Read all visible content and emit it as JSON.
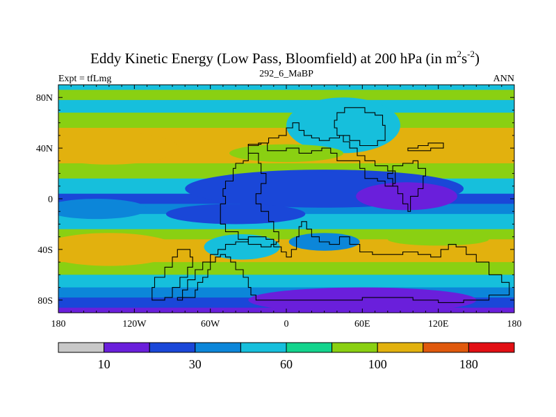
{
  "chart_data": {
    "type": "heatmap",
    "title": {
      "main": "Eddy Kinetic Energy (Low Pass, Bloomfield) at 200 hPa (in m",
      "sup1": "2",
      "mid": "s",
      "sup2": "-2",
      "close": ")"
    },
    "left_label": "Expt = tfLmg",
    "center_label": "292_6_MaBP",
    "right_label": "ANN",
    "xlim": [
      -180,
      180
    ],
    "ylim": [
      -90,
      90
    ],
    "x_ticks": [
      {
        "value": -180,
        "label": "180"
      },
      {
        "value": -120,
        "label": "120W"
      },
      {
        "value": -60,
        "label": "60W"
      },
      {
        "value": 0,
        "label": "0"
      },
      {
        "value": 60,
        "label": "60E"
      },
      {
        "value": 120,
        "label": "120E"
      },
      {
        "value": 180,
        "label": "180"
      }
    ],
    "y_ticks": [
      {
        "value": 80,
        "label": "80N"
      },
      {
        "value": 40,
        "label": "40N"
      },
      {
        "value": 0,
        "label": "0"
      },
      {
        "value": -40,
        "label": "40S"
      },
      {
        "value": -80,
        "label": "80S"
      }
    ],
    "colorbar": {
      "levels": [
        0,
        10,
        20,
        30,
        45,
        60,
        80,
        100,
        130,
        180,
        240
      ],
      "colors": [
        "#c8c8c8",
        "#6a1fdb",
        "#1a47d8",
        "#0c86d9",
        "#16bfdc",
        "#13d48d",
        "#8ad012",
        "#e2b10e",
        "#e0590d",
        "#e20f14"
      ],
      "labels": [
        {
          "value": 10,
          "label": "10"
        },
        {
          "value": 30,
          "label": "30"
        },
        {
          "value": 60,
          "label": "60"
        },
        {
          "value": 100,
          "label": "100"
        },
        {
          "value": 180,
          "label": "180"
        }
      ]
    },
    "zonal_bands": [
      {
        "lat_top": 90,
        "lat_bottom": 86,
        "value": 55
      },
      {
        "lat_top": 86,
        "lat_bottom": 78,
        "value": 85
      },
      {
        "lat_top": 78,
        "lat_bottom": 68,
        "value": 55
      },
      {
        "lat_top": 68,
        "lat_bottom": 56,
        "value": 85
      },
      {
        "lat_top": 56,
        "lat_bottom": 28,
        "value": 110
      },
      {
        "lat_top": 28,
        "lat_bottom": 16,
        "value": 85
      },
      {
        "lat_top": 16,
        "lat_bottom": 4,
        "value": 55
      },
      {
        "lat_top": 4,
        "lat_bottom": -4,
        "value": 25
      },
      {
        "lat_top": -4,
        "lat_bottom": -12,
        "value": 40
      },
      {
        "lat_top": -12,
        "lat_bottom": -24,
        "value": 55
      },
      {
        "lat_top": -24,
        "lat_bottom": -32,
        "value": 85
      },
      {
        "lat_top": -32,
        "lat_bottom": -50,
        "value": 110
      },
      {
        "lat_top": -50,
        "lat_bottom": -60,
        "value": 85
      },
      {
        "lat_top": -60,
        "lat_bottom": -70,
        "value": 55
      },
      {
        "lat_top": -70,
        "lat_bottom": -78,
        "value": 40
      },
      {
        "lat_top": -78,
        "lat_bottom": -86,
        "value": 25
      },
      {
        "lat_top": -86,
        "lat_bottom": -90,
        "value": 15
      }
    ],
    "regional_features": [
      {
        "shape": "ellipse",
        "lon": -140,
        "lat": 40,
        "rlon": 55,
        "rlat": 13,
        "value": 110
      },
      {
        "shape": "ellipse",
        "lon": 45,
        "lat": 58,
        "rlon": 45,
        "rlat": 22,
        "value": 55
      },
      {
        "shape": "ellipse",
        "lon": 150,
        "lat": 38,
        "rlon": 35,
        "rlat": 10,
        "value": 110
      },
      {
        "shape": "ellipse",
        "lon": 0,
        "lat": 36,
        "rlon": 45,
        "rlat": 7,
        "value": 85
      },
      {
        "shape": "ellipse",
        "lon": 30,
        "lat": 8,
        "rlon": 110,
        "rlat": 15,
        "value": 25
      },
      {
        "shape": "ellipse",
        "lon": 95,
        "lat": 2,
        "rlon": 40,
        "rlat": 11,
        "value": 15
      },
      {
        "shape": "ellipse",
        "lon": -40,
        "lat": -12,
        "rlon": 55,
        "rlat": 8,
        "value": 25
      },
      {
        "shape": "ellipse",
        "lon": -150,
        "lat": -8,
        "rlon": 40,
        "rlat": 8,
        "value": 40
      },
      {
        "shape": "ellipse",
        "lon": -35,
        "lat": -38,
        "rlon": 30,
        "rlat": 10,
        "value": 55
      },
      {
        "shape": "ellipse",
        "lon": 30,
        "lat": -34,
        "rlon": 28,
        "rlat": 7,
        "value": 40
      },
      {
        "shape": "ellipse",
        "lon": 120,
        "lat": -32,
        "rlon": 40,
        "rlat": 5,
        "value": 85
      },
      {
        "shape": "ellipse",
        "lon": -140,
        "lat": -40,
        "rlon": 55,
        "rlat": 13,
        "value": 110
      },
      {
        "shape": "ellipse",
        "lon": 60,
        "lat": -80,
        "rlon": 90,
        "rlat": 10,
        "value": 15
      }
    ],
    "continent_outlines": [
      [
        [
          -30,
          43
        ],
        [
          -20,
          44
        ],
        [
          -15,
          38
        ],
        [
          -5,
          38
        ],
        [
          0,
          40
        ],
        [
          10,
          36
        ],
        [
          20,
          38
        ],
        [
          28,
          40
        ],
        [
          35,
          36
        ],
        [
          40,
          30
        ],
        [
          50,
          30
        ],
        [
          58,
          24
        ],
        [
          62,
          16
        ],
        [
          72,
          14
        ],
        [
          78,
          10
        ],
        [
          84,
          12
        ],
        [
          86,
          22
        ],
        [
          80,
          26
        ],
        [
          70,
          30
        ],
        [
          62,
          34
        ],
        [
          56,
          40
        ],
        [
          50,
          45
        ],
        [
          45,
          50
        ],
        [
          40,
          56
        ],
        [
          38,
          62
        ],
        [
          40,
          68
        ],
        [
          46,
          72
        ],
        [
          55,
          72
        ],
        [
          62,
          68
        ],
        [
          70,
          66
        ],
        [
          76,
          58
        ],
        [
          78,
          46
        ],
        [
          72,
          42
        ],
        [
          64,
          42
        ],
        [
          58,
          46
        ],
        [
          50,
          50
        ],
        [
          42,
          48
        ],
        [
          34,
          46
        ],
        [
          26,
          48
        ],
        [
          20,
          50
        ],
        [
          14,
          54
        ],
        [
          10,
          60
        ],
        [
          5,
          56
        ],
        [
          0,
          50
        ],
        [
          -6,
          48
        ],
        [
          -14,
          44
        ],
        [
          -22,
          42
        ],
        [
          -30,
          43
        ]
      ],
      [
        [
          -30,
          43
        ],
        [
          -30,
          30
        ],
        [
          -34,
          28
        ],
        [
          -40,
          24
        ],
        [
          -42,
          14
        ],
        [
          -48,
          8
        ],
        [
          -50,
          2
        ],
        [
          -48,
          -4
        ],
        [
          -52,
          -10
        ],
        [
          -52,
          -20
        ],
        [
          -48,
          -26
        ],
        [
          -38,
          -32
        ],
        [
          -30,
          -36
        ],
        [
          -20,
          -38
        ],
        [
          -12,
          -36
        ],
        [
          -8,
          -34
        ],
        [
          -6,
          -26
        ],
        [
          -10,
          -18
        ],
        [
          -14,
          -10
        ],
        [
          -20,
          -4
        ],
        [
          -24,
          4
        ],
        [
          -20,
          12
        ],
        [
          -16,
          20
        ],
        [
          -20,
          28
        ],
        [
          -22,
          36
        ],
        [
          -30,
          43
        ]
      ],
      [
        [
          12,
          -18
        ],
        [
          16,
          -24
        ],
        [
          20,
          -30
        ],
        [
          26,
          -34
        ],
        [
          34,
          -36
        ],
        [
          42,
          -30
        ],
        [
          50,
          -36
        ],
        [
          58,
          -42
        ],
        [
          68,
          -44
        ],
        [
          80,
          -44
        ],
        [
          92,
          -42
        ],
        [
          104,
          -44
        ],
        [
          114,
          -46
        ],
        [
          122,
          -40
        ],
        [
          128,
          -36
        ],
        [
          134,
          -38
        ],
        [
          142,
          -44
        ],
        [
          150,
          -50
        ],
        [
          160,
          -60
        ],
        [
          170,
          -66
        ],
        [
          176,
          -70
        ],
        [
          176,
          -76
        ],
        [
          160,
          -80
        ],
        [
          140,
          -82
        ],
        [
          120,
          -80
        ],
        [
          100,
          -78
        ],
        [
          80,
          -78
        ],
        [
          60,
          -80
        ],
        [
          40,
          -80
        ],
        [
          20,
          -80
        ],
        [
          0,
          -80
        ],
        [
          -14,
          -80
        ],
        [
          -24,
          -76
        ],
        [
          -28,
          -70
        ],
        [
          -30,
          -62
        ],
        [
          -34,
          -56
        ],
        [
          -40,
          -50
        ],
        [
          -44,
          -46
        ],
        [
          -48,
          -44
        ],
        [
          -52,
          -46
        ],
        [
          -56,
          -50
        ],
        [
          -60,
          -56
        ],
        [
          -62,
          -62
        ],
        [
          -66,
          -66
        ],
        [
          -70,
          -72
        ],
        [
          -72,
          -78
        ],
        [
          -86,
          -80
        ],
        [
          -82,
          -72
        ],
        [
          -78,
          -64
        ],
        [
          -72,
          -56
        ],
        [
          -66,
          -50
        ],
        [
          -60,
          -44
        ],
        [
          -54,
          -40
        ],
        [
          -48,
          -36
        ],
        [
          -40,
          -34
        ],
        [
          -30,
          -30
        ],
        [
          -22,
          -30
        ],
        [
          -16,
          -32
        ],
        [
          -10,
          -38
        ],
        [
          -4,
          -42
        ],
        [
          0,
          -46
        ],
        [
          4,
          -40
        ],
        [
          8,
          -30
        ],
        [
          10,
          -22
        ],
        [
          12,
          -18
        ]
      ],
      [
        [
          80,
          20
        ],
        [
          84,
          26
        ],
        [
          92,
          28
        ],
        [
          100,
          30
        ],
        [
          104,
          24
        ],
        [
          110,
          18
        ],
        [
          108,
          8
        ],
        [
          104,
          2
        ],
        [
          98,
          -4
        ],
        [
          98,
          -10
        ],
        [
          96,
          -4
        ],
        [
          92,
          4
        ],
        [
          88,
          10
        ],
        [
          84,
          16
        ],
        [
          80,
          20
        ]
      ],
      [
        [
          96,
          40
        ],
        [
          104,
          42
        ],
        [
          112,
          44
        ],
        [
          122,
          44
        ],
        [
          124,
          40
        ],
        [
          114,
          38
        ],
        [
          104,
          38
        ],
        [
          96,
          40
        ]
      ],
      [
        [
          -80,
          -40
        ],
        [
          -86,
          -46
        ],
        [
          -90,
          -54
        ],
        [
          -96,
          -62
        ],
        [
          -104,
          -70
        ],
        [
          -106,
          -80
        ],
        [
          -96,
          -78
        ],
        [
          -90,
          -70
        ],
        [
          -84,
          -62
        ],
        [
          -78,
          -54
        ],
        [
          -74,
          -46
        ],
        [
          -76,
          -40
        ],
        [
          -80,
          -40
        ]
      ]
    ]
  }
}
